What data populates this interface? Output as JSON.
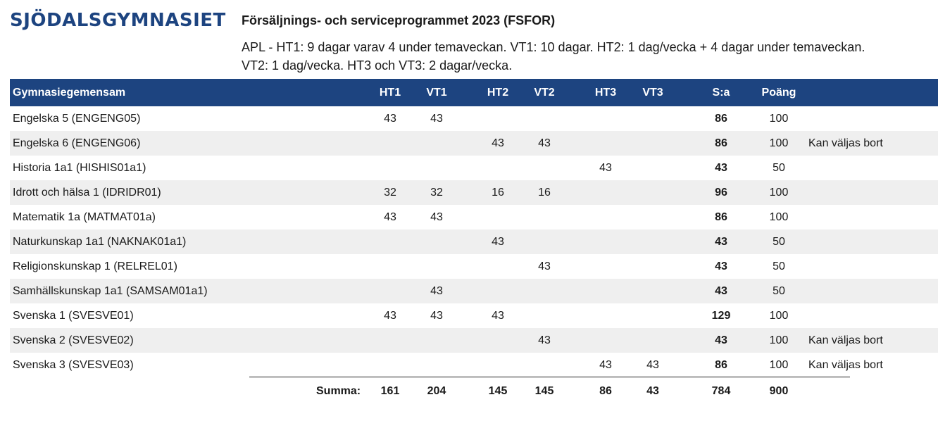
{
  "header": {
    "logo": "SJÖDALSGYMNASIET",
    "title": "Försäljnings- och serviceprogrammet 2023 (FSFOR)",
    "subtitle": "APL - HT1: 9 dagar varav 4 under temaveckan. VT1: 10 dagar. HT2: 1 dag/vecka + 4 dagar under temaveckan. VT2: 1 dag/vecka. HT3 och VT3: 2 dagar/vecka."
  },
  "colors": {
    "header_bg": "#1d4480",
    "alt_row": "#efefef"
  },
  "table": {
    "columns": {
      "name": "Gymnasiegemensam",
      "ht1": "HT1",
      "vt1": "VT1",
      "ht2": "HT2",
      "vt2": "VT2",
      "ht3": "HT3",
      "vt3": "VT3",
      "sa": "S:a",
      "po": "Poäng"
    },
    "rows": [
      {
        "name": "Engelska 5 (ENGENG05)",
        "ht1": "43",
        "vt1": "43",
        "ht2": "",
        "vt2": "",
        "ht3": "",
        "vt3": "",
        "sa": "86",
        "po": "100",
        "note": ""
      },
      {
        "name": "Engelska 6 (ENGENG06)",
        "ht1": "",
        "vt1": "",
        "ht2": "43",
        "vt2": "43",
        "ht3": "",
        "vt3": "",
        "sa": "86",
        "po": "100",
        "note": "Kan väljas bort"
      },
      {
        "name": "Historia 1a1 (HISHIS01a1)",
        "ht1": "",
        "vt1": "",
        "ht2": "",
        "vt2": "",
        "ht3": "43",
        "vt3": "",
        "sa": "43",
        "po": "50",
        "note": ""
      },
      {
        "name": "Idrott och hälsa 1 (IDRIDR01)",
        "ht1": "32",
        "vt1": "32",
        "ht2": "16",
        "vt2": "16",
        "ht3": "",
        "vt3": "",
        "sa": "96",
        "po": "100",
        "note": ""
      },
      {
        "name": "Matematik 1a (MATMAT01a)",
        "ht1": "43",
        "vt1": "43",
        "ht2": "",
        "vt2": "",
        "ht3": "",
        "vt3": "",
        "sa": "86",
        "po": "100",
        "note": ""
      },
      {
        "name": "Naturkunskap 1a1 (NAKNAK01a1)",
        "ht1": "",
        "vt1": "",
        "ht2": "43",
        "vt2": "",
        "ht3": "",
        "vt3": "",
        "sa": "43",
        "po": "50",
        "note": ""
      },
      {
        "name": "Religionskunskap 1 (RELREL01)",
        "ht1": "",
        "vt1": "",
        "ht2": "",
        "vt2": "43",
        "ht3": "",
        "vt3": "",
        "sa": "43",
        "po": "50",
        "note": ""
      },
      {
        "name": "Samhällskunskap 1a1 (SAMSAM01a1)",
        "ht1": "",
        "vt1": "43",
        "ht2": "",
        "vt2": "",
        "ht3": "",
        "vt3": "",
        "sa": "43",
        "po": "50",
        "note": ""
      },
      {
        "name": "Svenska 1 (SVESVE01)",
        "ht1": "43",
        "vt1": "43",
        "ht2": "43",
        "vt2": "",
        "ht3": "",
        "vt3": "",
        "sa": "129",
        "po": "100",
        "note": ""
      },
      {
        "name": "Svenska 2 (SVESVE02)",
        "ht1": "",
        "vt1": "",
        "ht2": "",
        "vt2": "43",
        "ht3": "",
        "vt3": "",
        "sa": "43",
        "po": "100",
        "note": "Kan väljas bort"
      },
      {
        "name": "Svenska 3 (SVESVE03)",
        "ht1": "",
        "vt1": "",
        "ht2": "",
        "vt2": "",
        "ht3": "43",
        "vt3": "43",
        "sa": "86",
        "po": "100",
        "note": "Kan väljas bort"
      }
    ],
    "summa": {
      "label": "Summa:",
      "ht1": "161",
      "vt1": "204",
      "ht2": "145",
      "vt2": "145",
      "ht3": "86",
      "vt3": "43",
      "sa": "784",
      "po": "900"
    }
  }
}
